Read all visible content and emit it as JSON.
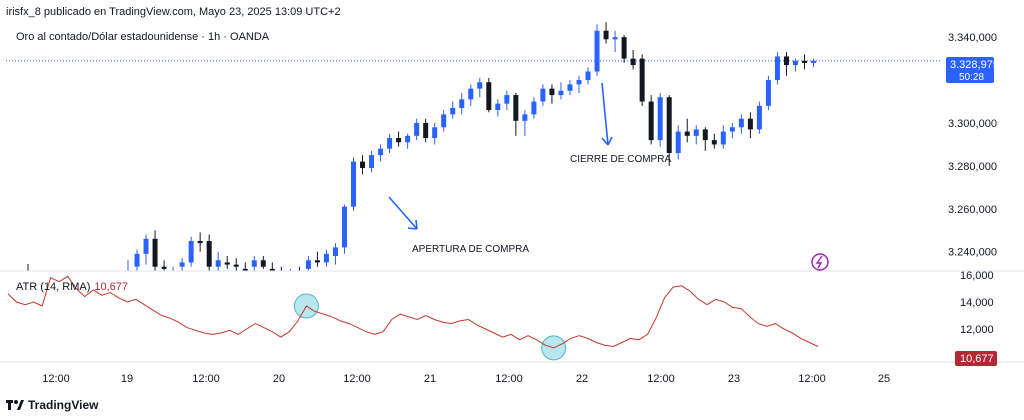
{
  "header": {
    "publisher": "irisfx_8 publicado en TradingView.com, Mayo 23, 2025 13:09 UTC+2"
  },
  "symbol": {
    "title": "Oro al contado/Dólar estadounidense · 1h · OANDA"
  },
  "atr_legend": {
    "label": "ATR (14, RMA)",
    "value": "10,677"
  },
  "footer": {
    "brand": "TradingView"
  },
  "price_badge": {
    "price": "3.328,975",
    "countdown": "50:28"
  },
  "atr_badge": {
    "value": "10,677"
  },
  "annotations": {
    "buy_open": "APERTURA DE COMPRA",
    "buy_close": "CIERRE DE COMPRA"
  },
  "colors": {
    "up": "#2962ff",
    "down": "#131722",
    "atr": "#c0392b",
    "circle": "#7fd3e0",
    "badge": "#2962ff",
    "atr_badge": "#b22833"
  },
  "chart_data": [
    {
      "type": "candlestick",
      "title": "",
      "y_ticks": [
        "3.340,000",
        "3.320,000",
        "3.300,000",
        "3.280,000",
        "3.260,000",
        "3.240,000"
      ],
      "ylim": [
        3231,
        3348
      ],
      "current_price": 3328.975,
      "candles": [
        {
          "o": 3229,
          "h": 3236,
          "l": 3226,
          "c": 3231
        },
        {
          "o": 3233,
          "h": 3241,
          "l": 3229,
          "c": 3239
        },
        {
          "o": 3239,
          "h": 3248,
          "l": 3234,
          "c": 3246
        },
        {
          "o": 3246,
          "h": 3250,
          "l": 3231,
          "c": 3233
        },
        {
          "o": 3233,
          "h": 3236,
          "l": 3229,
          "c": 3232
        },
        {
          "o": 3229,
          "h": 3233,
          "l": 3226,
          "c": 3230
        },
        {
          "o": 3233,
          "h": 3237,
          "l": 3230,
          "c": 3235
        },
        {
          "o": 3235,
          "h": 3247,
          "l": 3233,
          "c": 3245
        },
        {
          "o": 3245,
          "h": 3249,
          "l": 3240,
          "c": 3244
        },
        {
          "o": 3245,
          "h": 3248,
          "l": 3230,
          "c": 3233
        },
        {
          "o": 3233,
          "h": 3240,
          "l": 3230,
          "c": 3236
        },
        {
          "o": 3235,
          "h": 3238,
          "l": 3232,
          "c": 3234
        },
        {
          "o": 3234,
          "h": 3237,
          "l": 3231,
          "c": 3233
        },
        {
          "o": 3232,
          "h": 3235,
          "l": 3229,
          "c": 3231
        },
        {
          "o": 3233,
          "h": 3238,
          "l": 3231,
          "c": 3236
        },
        {
          "o": 3236,
          "h": 3238,
          "l": 3232,
          "c": 3233
        },
        {
          "o": 3232,
          "h": 3235,
          "l": 3229,
          "c": 3230
        },
        {
          "o": 3230,
          "h": 3233,
          "l": 3227,
          "c": 3229
        },
        {
          "o": 3229,
          "h": 3232,
          "l": 3226,
          "c": 3230
        },
        {
          "o": 3230,
          "h": 3233,
          "l": 3227,
          "c": 3228
        },
        {
          "o": 3232,
          "h": 3238,
          "l": 3230,
          "c": 3236
        },
        {
          "o": 3236,
          "h": 3240,
          "l": 3233,
          "c": 3235
        },
        {
          "o": 3235,
          "h": 3241,
          "l": 3233,
          "c": 3239
        },
        {
          "o": 3238,
          "h": 3244,
          "l": 3234,
          "c": 3242
        },
        {
          "o": 3242,
          "h": 3262,
          "l": 3239,
          "c": 3261
        },
        {
          "o": 3261,
          "h": 3284,
          "l": 3259,
          "c": 3282
        },
        {
          "o": 3282,
          "h": 3285,
          "l": 3276,
          "c": 3279
        },
        {
          "o": 3279,
          "h": 3287,
          "l": 3277,
          "c": 3285
        },
        {
          "o": 3285,
          "h": 3290,
          "l": 3282,
          "c": 3288
        },
        {
          "o": 3288,
          "h": 3295,
          "l": 3286,
          "c": 3293
        },
        {
          "o": 3293,
          "h": 3296,
          "l": 3289,
          "c": 3291
        },
        {
          "o": 3291,
          "h": 3295,
          "l": 3288,
          "c": 3294
        },
        {
          "o": 3294,
          "h": 3302,
          "l": 3292,
          "c": 3300
        },
        {
          "o": 3300,
          "h": 3302,
          "l": 3291,
          "c": 3293
        },
        {
          "o": 3293,
          "h": 3300,
          "l": 3290,
          "c": 3298
        },
        {
          "o": 3298,
          "h": 3306,
          "l": 3296,
          "c": 3304
        },
        {
          "o": 3304,
          "h": 3310,
          "l": 3302,
          "c": 3307
        },
        {
          "o": 3307,
          "h": 3314,
          "l": 3304,
          "c": 3311
        },
        {
          "o": 3311,
          "h": 3318,
          "l": 3308,
          "c": 3316
        },
        {
          "o": 3316,
          "h": 3321,
          "l": 3312,
          "c": 3319
        },
        {
          "o": 3319,
          "h": 3321,
          "l": 3305,
          "c": 3306
        },
        {
          "o": 3306,
          "h": 3311,
          "l": 3303,
          "c": 3309
        },
        {
          "o": 3309,
          "h": 3315,
          "l": 3306,
          "c": 3313
        },
        {
          "o": 3313,
          "h": 3314,
          "l": 3294,
          "c": 3301
        },
        {
          "o": 3301,
          "h": 3306,
          "l": 3294,
          "c": 3304
        },
        {
          "o": 3304,
          "h": 3312,
          "l": 3302,
          "c": 3310
        },
        {
          "o": 3310,
          "h": 3318,
          "l": 3308,
          "c": 3316
        },
        {
          "o": 3316,
          "h": 3318,
          "l": 3309,
          "c": 3313
        },
        {
          "o": 3313,
          "h": 3319,
          "l": 3311,
          "c": 3315
        },
        {
          "o": 3315,
          "h": 3320,
          "l": 3313,
          "c": 3318
        },
        {
          "o": 3318,
          "h": 3322,
          "l": 3314,
          "c": 3320
        },
        {
          "o": 3320,
          "h": 3326,
          "l": 3318,
          "c": 3324
        },
        {
          "o": 3324,
          "h": 3346,
          "l": 3322,
          "c": 3343
        },
        {
          "o": 3343,
          "h": 3347,
          "l": 3337,
          "c": 3339
        },
        {
          "o": 3339,
          "h": 3343,
          "l": 3333,
          "c": 3340
        },
        {
          "o": 3340,
          "h": 3341,
          "l": 3328,
          "c": 3330
        },
        {
          "o": 3330,
          "h": 3334,
          "l": 3325,
          "c": 3327
        },
        {
          "o": 3330,
          "h": 3332,
          "l": 3308,
          "c": 3310
        },
        {
          "o": 3310,
          "h": 3313,
          "l": 3290,
          "c": 3292
        },
        {
          "o": 3292,
          "h": 3314,
          "l": 3289,
          "c": 3312
        },
        {
          "o": 3312,
          "h": 3313,
          "l": 3280,
          "c": 3286
        },
        {
          "o": 3286,
          "h": 3299,
          "l": 3283,
          "c": 3296
        },
        {
          "o": 3296,
          "h": 3302,
          "l": 3291,
          "c": 3294
        },
        {
          "o": 3294,
          "h": 3299,
          "l": 3290,
          "c": 3297
        },
        {
          "o": 3297,
          "h": 3298,
          "l": 3287,
          "c": 3292
        },
        {
          "o": 3292,
          "h": 3295,
          "l": 3288,
          "c": 3290
        },
        {
          "o": 3290,
          "h": 3299,
          "l": 3288,
          "c": 3296
        },
        {
          "o": 3296,
          "h": 3300,
          "l": 3293,
          "c": 3298
        },
        {
          "o": 3298,
          "h": 3304,
          "l": 3295,
          "c": 3302
        },
        {
          "o": 3302,
          "h": 3305,
          "l": 3293,
          "c": 3297
        },
        {
          "o": 3297,
          "h": 3310,
          "l": 3295,
          "c": 3308
        },
        {
          "o": 3308,
          "h": 3322,
          "l": 3306,
          "c": 3320
        },
        {
          "o": 3320,
          "h": 3333,
          "l": 3318,
          "c": 3331
        },
        {
          "o": 3331,
          "h": 3333,
          "l": 3322,
          "c": 3327
        },
        {
          "o": 3327,
          "h": 3330,
          "l": 3324,
          "c": 3329
        },
        {
          "o": 3329,
          "h": 3332,
          "l": 3325,
          "c": 3328
        },
        {
          "o": 3328,
          "h": 3330,
          "l": 3326,
          "c": 3329
        }
      ]
    },
    {
      "type": "line",
      "title": "ATR (14, RMA)",
      "y_ticks": [
        "16,000",
        "14,000",
        "12,000"
      ],
      "ylim": [
        9.7,
        16.0
      ],
      "values": [
        14.6,
        14.0,
        13.8,
        14.0,
        13.7,
        15.8,
        15.5,
        15.9,
        15.0,
        14.4,
        14.9,
        14.5,
        14.7,
        14.3,
        14.0,
        14.2,
        13.8,
        13.4,
        13.0,
        12.8,
        12.5,
        12.1,
        11.9,
        11.7,
        11.6,
        11.7,
        11.9,
        11.6,
        12.0,
        12.4,
        12.1,
        11.8,
        11.4,
        11.8,
        12.6,
        13.7,
        13.3,
        13.1,
        12.9,
        12.6,
        12.4,
        12.1,
        11.8,
        11.6,
        11.8,
        12.7,
        13.1,
        12.9,
        12.7,
        13.0,
        12.7,
        12.5,
        12.4,
        12.6,
        12.7,
        12.3,
        12.0,
        11.7,
        11.4,
        11.6,
        11.2,
        11.5,
        11.2,
        10.8,
        10.6,
        10.9,
        11.3,
        11.5,
        11.3,
        11.0,
        10.8,
        10.7,
        11.0,
        11.3,
        11.2,
        11.6,
        12.8,
        14.3,
        15.1,
        15.2,
        14.8,
        14.2,
        13.8,
        14.2,
        14.0,
        13.6,
        13.5,
        12.9,
        12.4,
        12.2,
        12.4,
        12.0,
        11.7,
        11.3,
        11.0,
        10.7
      ]
    }
  ],
  "x_ticks": [
    "12:00",
    "19",
    "12:00",
    "20",
    "12:00",
    "21",
    "12:00",
    "22",
    "12:00",
    "23",
    "12:00",
    "25"
  ]
}
